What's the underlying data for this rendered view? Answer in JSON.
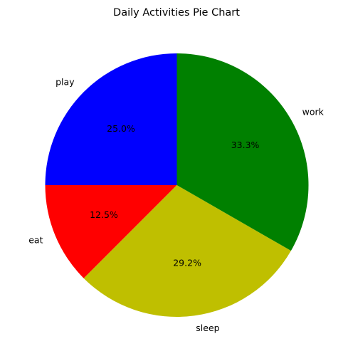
{
  "chart_data": {
    "type": "pie",
    "title": "Daily Activities Pie Chart",
    "start_angle_deg": 90,
    "direction": "counterclockwise",
    "legend": "none",
    "slices": [
      {
        "label": "play",
        "value": 25.0,
        "pct_label": "25.0%",
        "color": "#0000ff"
      },
      {
        "label": "eat",
        "value": 12.5,
        "pct_label": "12.5%",
        "color": "#ff0000"
      },
      {
        "label": "sleep",
        "value": 29.2,
        "pct_label": "29.2%",
        "color": "#bfbf00"
      },
      {
        "label": "work",
        "value": 33.3,
        "pct_label": "33.3%",
        "color": "#008000"
      }
    ]
  }
}
